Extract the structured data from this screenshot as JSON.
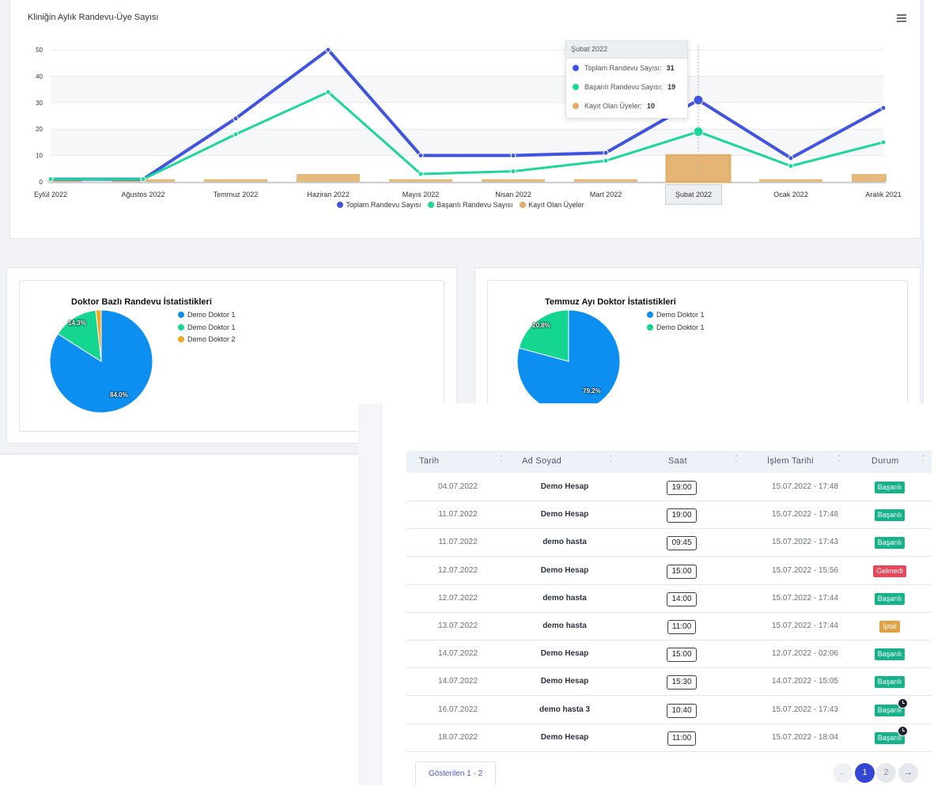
{
  "line_chart": {
    "title": "Kliniğin Aylık Randevu-Üye Sayısı",
    "menu_icon": "hamburger-menu-icon",
    "hover_category": "Şubat 2022",
    "tooltip": {
      "title": "Şubat 2022",
      "rows": [
        {
          "label": "Toplam Randevu Sayısı:",
          "value": "31",
          "color": "#4054e0"
        },
        {
          "label": "Başarılı Randevu Sayısı:",
          "value": "19",
          "color": "#1dd79a"
        },
        {
          "label": "Kayıt Olan Üyeler:",
          "value": "10",
          "color": "#e2ad66"
        }
      ]
    }
  },
  "chart_data": [
    {
      "type": "line",
      "title": "Kliniğin Aylık Randevu-Üye Sayısı",
      "categories": [
        "Eylül 2022",
        "Ağustos 2022",
        "Temmuz 2022",
        "Haziran 2022",
        "Mayıs 2022",
        "Nisan 2022",
        "Mart 2022",
        "Şubat 2022",
        "Ocak 2022",
        "Aralık 2021"
      ],
      "yticks": [
        "0",
        "10",
        "20",
        "30",
        "40",
        "50"
      ],
      "ylim": [
        0,
        50
      ],
      "grid": true,
      "legend_position": "bottom",
      "series": [
        {
          "name": "Toplam Randevu Sayısı",
          "type": "line",
          "color": "#4054e0",
          "values": [
            1,
            1,
            24,
            50,
            10,
            10,
            11,
            31,
            9,
            28
          ]
        },
        {
          "name": "Başarılı Randevu Sayısı",
          "type": "line",
          "color": "#1dd79a",
          "values": [
            1,
            1,
            18,
            34,
            3,
            4,
            8,
            19,
            6,
            15
          ]
        },
        {
          "name": "Kayıt Olan Üyeler",
          "type": "bar",
          "color": "#e2ad66",
          "values": [
            1,
            1,
            1,
            3,
            1,
            1,
            1,
            10,
            1,
            3
          ]
        }
      ]
    },
    {
      "type": "pie",
      "title": "Doktor Bazlı Randevu İstatistikleri",
      "labels": [
        "Demo Doktor 1",
        "Demo Doktor 1",
        "Demo Doktor 2"
      ],
      "values": [
        84.0,
        14.3,
        1.7
      ],
      "value_labels": [
        "84.0%",
        "14.3%",
        ""
      ],
      "colors": [
        "#0d8ff2",
        "#15d691",
        "#f6a821"
      ],
      "legend_position": "right"
    },
    {
      "type": "pie",
      "title": "Temmuz Ayı Doktor İstatistikleri",
      "labels": [
        "Demo Doktor 1",
        "Demo Doktor 1"
      ],
      "values": [
        79.2,
        20.8
      ],
      "value_labels": [
        "79.2%",
        "20.8%"
      ],
      "colors": [
        "#0d8ff2",
        "#15d691"
      ],
      "legend_position": "right"
    }
  ],
  "table": {
    "columns": [
      "Tarih",
      "Ad Soyad",
      "Saat",
      "İşlem Tarihi",
      "Durum"
    ],
    "sort_icon": "sort-arrows-icon",
    "rows": [
      {
        "date": "04.07.2022",
        "name": "Demo Hesap",
        "time": "19:00",
        "op": "15.07.2022 - 17:48",
        "status": "Başarılı",
        "color": "#17b18a",
        "clock": false
      },
      {
        "date": "11.07.2022",
        "name": "Demo Hesap",
        "time": "19:00",
        "op": "15.07.2022 - 17:48",
        "status": "Başarılı",
        "color": "#17b18a",
        "clock": false
      },
      {
        "date": "11.07.2022",
        "name": "demo hasta",
        "time": "09:45",
        "op": "15.07.2022 - 17:43",
        "status": "Başarılı",
        "color": "#17b18a",
        "clock": false
      },
      {
        "date": "12.07.2022",
        "name": "Demo Hesap",
        "time": "15:00",
        "op": "15.07.2022 - 15:56",
        "status": "Gelmedi",
        "color": "#e5485a",
        "clock": false
      },
      {
        "date": "12.07.2022",
        "name": "demo hasta",
        "time": "14:00",
        "op": "15.07.2022 - 17:44",
        "status": "Başarılı",
        "color": "#17b18a",
        "clock": false
      },
      {
        "date": "13.07.2022",
        "name": "demo hasta",
        "time": "11:00",
        "op": "15.07.2022 - 17:44",
        "status": "İptal",
        "color": "#e0a143",
        "clock": false
      },
      {
        "date": "14.07.2022",
        "name": "Demo Hesap",
        "time": "15:00",
        "op": "12.07.2022 - 02:06",
        "status": "Başarılı",
        "color": "#17b18a",
        "clock": false
      },
      {
        "date": "14.07.2022",
        "name": "Demo Hesap",
        "time": "15:30",
        "op": "14.07.2022 - 15:05",
        "status": "Başarılı",
        "color": "#17b18a",
        "clock": false
      },
      {
        "date": "16.07.2022",
        "name": "demo hasta 3",
        "time": "10:40",
        "op": "15.07.2022 - 17:43",
        "status": "Başarılı",
        "color": "#17b18a",
        "clock": true
      },
      {
        "date": "18.07.2022",
        "name": "Demo Hesap",
        "time": "11:00",
        "op": "15.07.2022 - 18:04",
        "status": "Başarılı",
        "color": "#17b18a",
        "clock": true
      }
    ],
    "showing": "Gösterilen 1 - 2",
    "pagination": {
      "prev_icon": "arrow-left-icon",
      "next_icon": "arrow-right-icon",
      "pages": [
        "1",
        "2"
      ],
      "current": "1"
    }
  }
}
